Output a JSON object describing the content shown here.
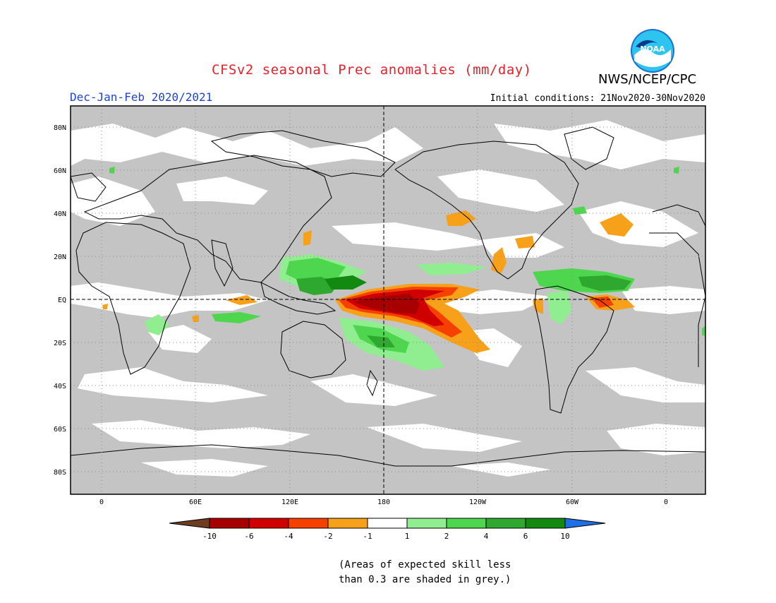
{
  "header": {
    "title": "CFSv2 seasonal Prec anomalies (mm/day)",
    "season": "Dec-Jan-Feb 2020/2021",
    "initial_conditions": "Initial conditions: 21Nov2020-30Nov2020",
    "agency": "NWS/NCEP/CPC",
    "logo_text": "NOAA"
  },
  "colors": {
    "title": "#e8202a",
    "season": "#1e43d6",
    "grey_mask": "#c4c4c4",
    "ocean_white": "#ffffff",
    "frame": "#000000"
  },
  "axes": {
    "lat_labels": [
      "80N",
      "60N",
      "40N",
      "20N",
      "EQ",
      "20S",
      "40S",
      "60S",
      "80S"
    ],
    "lon_labels": [
      "0",
      "60E",
      "120E",
      "180",
      "120W",
      "60W",
      "0"
    ]
  },
  "colorbar": {
    "labels": [
      "-10",
      "-6",
      "-4",
      "-2",
      "-1",
      "1",
      "2",
      "4",
      "6",
      "10"
    ],
    "colors": [
      "#6e3c1e",
      "#a80000",
      "#d00000",
      "#f54000",
      "#f7a01a",
      "#ffffff",
      "#90ee90",
      "#4fd64f",
      "#2ea82e",
      "#128a12",
      "#1e6ee6"
    ]
  },
  "note": {
    "line1": "(Areas of expected skill less",
    "line2": "than 0.3 are shaded in grey.)"
  }
}
